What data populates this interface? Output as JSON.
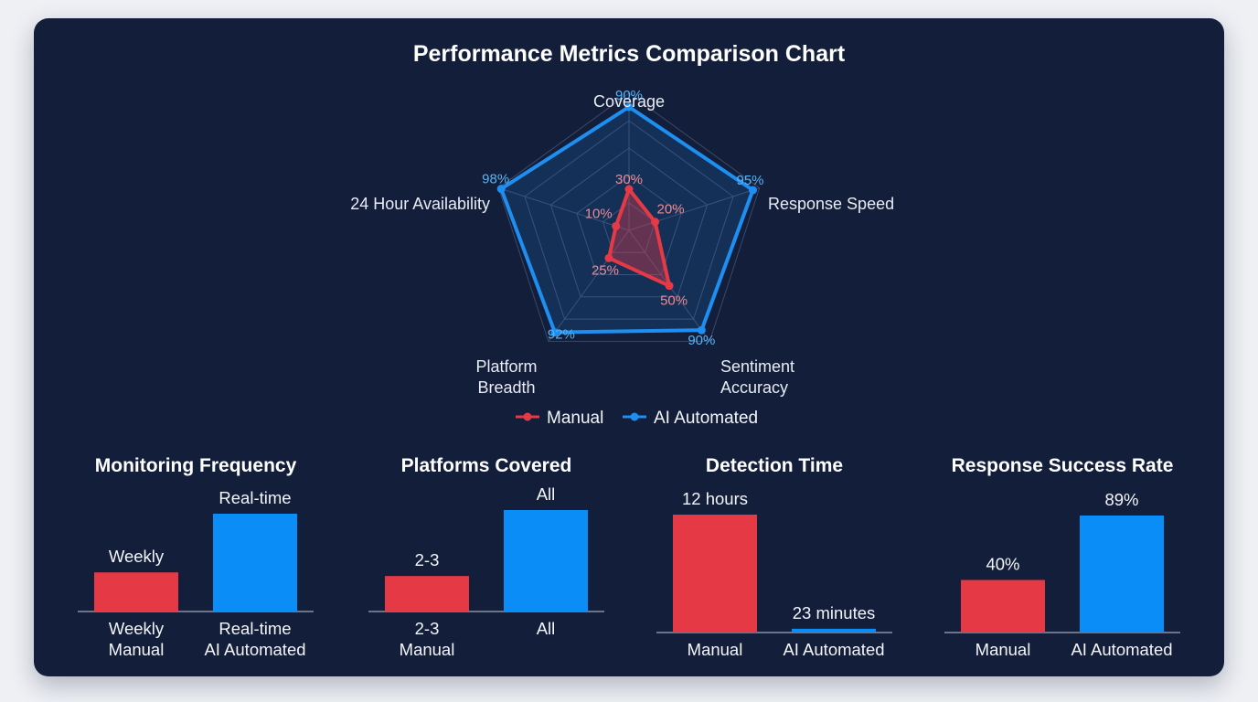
{
  "chart_data": [
    {
      "type": "radar",
      "title": "Performance Metrics Comparison Chart",
      "axes": [
        {
          "label": [
            "Coverage"
          ]
        },
        {
          "label": [
            "Response Speed"
          ]
        },
        {
          "label": [
            "Sentiment",
            "Accuracy"
          ]
        },
        {
          "label": [
            "Platform",
            "Breadth"
          ]
        },
        {
          "label": [
            "24 Hour Availability"
          ]
        }
      ],
      "range": [
        0,
        100
      ],
      "series": [
        {
          "name": "Manual",
          "color": "#e63946",
          "values": [
            30,
            20,
            50,
            25,
            10
          ],
          "value_labels": [
            "30%",
            "20%",
            "50%",
            "25%",
            "10%"
          ]
        },
        {
          "name": "AI Automated",
          "color": "#1e8ff0",
          "values": [
            90,
            95,
            90,
            92,
            98
          ],
          "value_labels": [
            "90%",
            "95%",
            "90%",
            "92%",
            "98%"
          ]
        }
      ],
      "legend": "bottom"
    },
    {
      "type": "bar",
      "title": "Monitoring Frequency",
      "categories": [
        [
          "Weekly",
          "Manual"
        ],
        [
          "Real-time",
          "AI Automated"
        ]
      ],
      "values": [
        2,
        5
      ],
      "value_labels": [
        "Weekly",
        "Real-time"
      ],
      "colors": [
        "#e63946",
        "#0b8df8"
      ],
      "ylim": [
        0,
        5
      ]
    },
    {
      "type": "bar",
      "title": "Platforms Covered",
      "categories": [
        [
          "2-3",
          "Manual"
        ],
        [
          "All"
        ]
      ],
      "values": [
        1.75,
        5
      ],
      "value_labels": [
        "2-3",
        "All"
      ],
      "colors": [
        "#e63946",
        "#0b8df8"
      ],
      "ylim": [
        0,
        5
      ]
    },
    {
      "type": "bar",
      "title": "Detection Time",
      "categories": [
        [
          "Manual"
        ],
        [
          "AI Automated"
        ]
      ],
      "values": [
        720,
        23
      ],
      "value_labels": [
        "12 hours",
        "23 minutes"
      ],
      "colors": [
        "#e63946",
        "#0b8df8"
      ],
      "ylim": [
        0,
        720
      ]
    },
    {
      "type": "bar",
      "title": "Response Success Rate",
      "categories": [
        [
          "Manual"
        ],
        [
          "AI Automated"
        ]
      ],
      "values": [
        40,
        89
      ],
      "value_labels": [
        "40%",
        "89%"
      ],
      "colors": [
        "#e63946",
        "#0b8df8"
      ],
      "ylim": [
        0,
        89
      ]
    }
  ]
}
